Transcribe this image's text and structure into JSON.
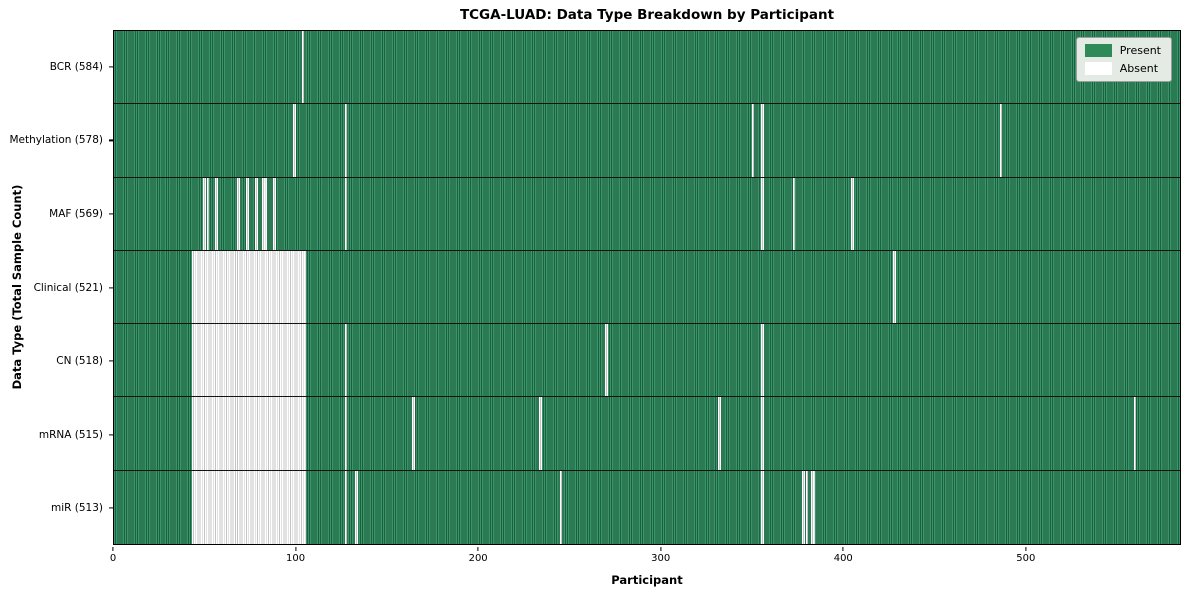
{
  "title": "TCGA-LUAD: Data Type Breakdown by Participant",
  "axes": {
    "xlabel": "Participant",
    "ylabel": "Data Type (Total Sample Count)"
  },
  "legend": {
    "items": [
      {
        "label": "Present",
        "color": "#2e8b57"
      },
      {
        "label": "Absent",
        "color": "#ffffff"
      }
    ]
  },
  "colors": {
    "present": "#2e8b57",
    "present_stripe_dark": "#1f5e3e",
    "absent": "#ffffff",
    "absent_stripe": "#c4c4c4",
    "plot_border": "#000000"
  },
  "chart_data": {
    "type": "heatmap",
    "title": "TCGA-LUAD: Data Type Breakdown by Participant",
    "xlabel": "Participant",
    "ylabel": "Data Type (Total Sample Count)",
    "legend_entries": [
      "Present",
      "Absent"
    ],
    "grid": false,
    "legend_position": "upper right",
    "x_range": [
      0,
      585
    ],
    "x_tick_values": [
      0,
      100,
      200,
      300,
      400,
      500
    ],
    "cell_semantics": "green = data present for participant, white = absent",
    "rows": [
      {
        "label": "BCR (584)",
        "data_type": "BCR",
        "present_count": 584,
        "absent_ranges": [
          [
            103,
            104.5
          ]
        ]
      },
      {
        "label": "Methylation (578)",
        "data_type": "Methylation",
        "present_count": 578,
        "absent_ranges": [
          [
            98,
            100
          ],
          [
            126.5,
            128
          ],
          [
            350,
            351.5
          ],
          [
            355,
            356.5
          ],
          [
            486,
            487.5
          ]
        ]
      },
      {
        "label": "MAF (569)",
        "data_type": "MAF",
        "present_count": 569,
        "absent_ranges": [
          [
            49,
            50.3
          ],
          [
            51,
            52.3
          ],
          [
            55.5,
            57
          ],
          [
            67.5,
            69
          ],
          [
            72.5,
            74
          ],
          [
            77.5,
            79
          ],
          [
            81,
            84
          ],
          [
            87.5,
            89
          ],
          [
            126.5,
            128
          ],
          [
            355,
            356.5
          ],
          [
            372.5,
            374
          ],
          [
            404.5,
            406
          ]
        ]
      },
      {
        "label": "Clinical (521)",
        "data_type": "Clinical",
        "present_count": 521,
        "absent_ranges": [
          [
            43,
            105.5
          ],
          [
            427.5,
            429
          ]
        ]
      },
      {
        "label": "CN (518)",
        "data_type": "CN",
        "present_count": 518,
        "absent_ranges": [
          [
            43,
            105.5
          ],
          [
            126.5,
            128
          ],
          [
            269.5,
            271
          ],
          [
            355,
            356.5
          ]
        ]
      },
      {
        "label": "mRNA (515)",
        "data_type": "mRNA",
        "present_count": 515,
        "absent_ranges": [
          [
            43,
            105.5
          ],
          [
            126.5,
            128
          ],
          [
            163.5,
            165
          ],
          [
            233.5,
            235
          ],
          [
            331.5,
            333
          ],
          [
            355,
            356.5
          ],
          [
            559.5,
            561
          ]
        ]
      },
      {
        "label": "miR (513)",
        "data_type": "miR",
        "present_count": 513,
        "absent_ranges": [
          [
            43,
            105.5
          ],
          [
            126.5,
            128
          ],
          [
            132.5,
            134
          ],
          [
            244.5,
            246
          ],
          [
            355,
            356.5
          ],
          [
            377.5,
            379
          ],
          [
            380,
            381
          ],
          [
            382.5,
            384.5
          ]
        ]
      }
    ]
  }
}
